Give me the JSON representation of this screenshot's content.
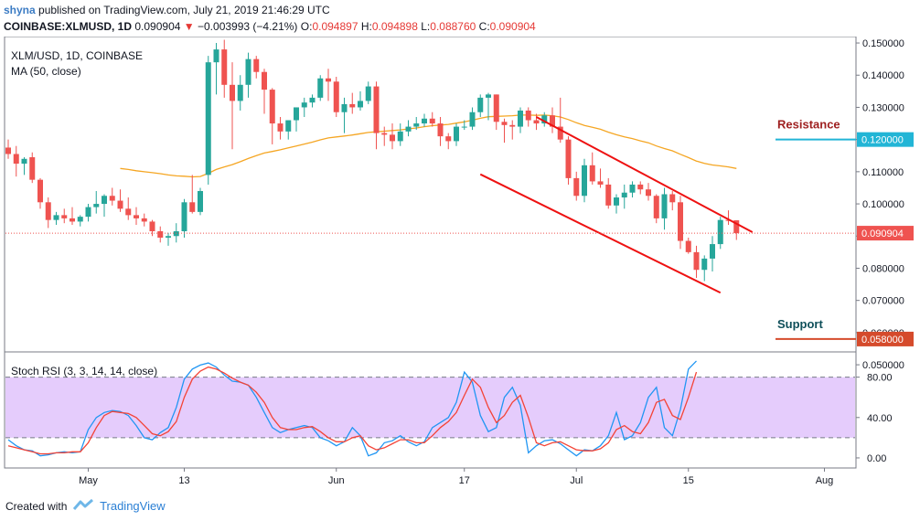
{
  "header": {
    "author": "shyna",
    "published_text": "published on TradingView.com, July 21, 2019 21:46:29 UTC",
    "symbol": "COINBASE:XLMUSD, 1D",
    "last": "0.090904",
    "change": "−0.003993 (−4.21%)",
    "o_label": "O:",
    "o_value": "0.094897",
    "h_label": "H:",
    "h_value": "0.094898",
    "l_label": "L:",
    "l_value": "0.088760",
    "c_label": "C:",
    "c_value": "0.090904"
  },
  "legend": {
    "symbol_line": "XLM/USD, 1D, COINBASE",
    "ma_line": "MA (50, close)",
    "stoch_line": "Stoch RSI (3, 3, 14, 14, close)"
  },
  "footer": {
    "created_with": "Created with",
    "brand": "TradingView"
  },
  "colors": {
    "up": "#26a69a",
    "down": "#ef5350",
    "ma": "#f5a623",
    "k": "#2196f3",
    "d": "#f44336",
    "band": "#e1c3fb",
    "resistance": "#22b5d6",
    "support": "#d54b2c",
    "channel": "#ee1111",
    "resistance_text": "#9e1f1f",
    "support_text": "#0f4f5a"
  },
  "chart_data": [
    {
      "type": "candlestick",
      "title": "XLM/USD, 1D, COINBASE",
      "dates": [
        "Apr 21",
        "Apr 22",
        "Apr 23",
        "Apr 24",
        "Apr 25",
        "Apr 26",
        "Apr 27",
        "Apr 28",
        "Apr 29",
        "Apr 30",
        "May 1",
        "May 2",
        "May 3",
        "May 4",
        "May 5",
        "May 6",
        "May 7",
        "May 8",
        "May 9",
        "May 10",
        "May 11",
        "May 12",
        "May 13",
        "May 14",
        "May 15",
        "May 16",
        "May 17",
        "May 18",
        "May 19",
        "May 20",
        "May 21",
        "May 22",
        "May 23",
        "May 24",
        "May 25",
        "May 26",
        "May 27",
        "May 28",
        "May 29",
        "May 30",
        "May 31",
        "Jun 1",
        "Jun 2",
        "Jun 3",
        "Jun 4",
        "Jun 5",
        "Jun 6",
        "Jun 7",
        "Jun 8",
        "Jun 9",
        "Jun 10",
        "Jun 11",
        "Jun 12",
        "Jun 13",
        "Jun 14",
        "Jun 15",
        "Jun 16",
        "Jun 17",
        "Jun 18",
        "Jun 19",
        "Jun 20",
        "Jun 21",
        "Jun 22",
        "Jun 23",
        "Jun 24",
        "Jun 25",
        "Jun 26",
        "Jun 27",
        "Jun 28",
        "Jun 29",
        "Jun 30",
        "Jul 1",
        "Jul 2",
        "Jul 3",
        "Jul 4",
        "Jul 5",
        "Jul 6",
        "Jul 7",
        "Jul 8",
        "Jul 9",
        "Jul 10",
        "Jul 11",
        "Jul 12",
        "Jul 13",
        "Jul 14",
        "Jul 15",
        "Jul 16",
        "Jul 17",
        "Jul 18",
        "Jul 19",
        "Jul 20",
        "Jul 21"
      ],
      "open": [
        0.1175,
        0.1155,
        0.1125,
        0.1145,
        0.1075,
        0.1005,
        0.095,
        0.0965,
        0.0955,
        0.0945,
        0.096,
        0.099,
        0.1,
        0.1025,
        0.101,
        0.0985,
        0.0965,
        0.0955,
        0.0945,
        0.0915,
        0.0895,
        0.09,
        0.0915,
        0.1005,
        0.0975,
        0.109,
        0.144,
        0.148,
        0.137,
        0.132,
        0.137,
        0.145,
        0.141,
        0.1355,
        0.125,
        0.1225,
        0.126,
        0.13,
        0.1315,
        0.133,
        0.139,
        0.138,
        0.1285,
        0.131,
        0.13,
        0.132,
        0.1365,
        0.122,
        0.1215,
        0.1195,
        0.1225,
        0.124,
        0.125,
        0.1265,
        0.125,
        0.121,
        0.1195,
        0.124,
        0.124,
        0.1285,
        0.133,
        0.134,
        0.1255,
        0.1245,
        0.124,
        0.129,
        0.126,
        0.125,
        0.1275,
        0.124,
        0.12,
        0.108,
        0.1025,
        0.112,
        0.107,
        0.106,
        0.0995,
        0.102,
        0.1035,
        0.106,
        0.1045,
        0.1025,
        0.0955,
        0.103,
        0.1005,
        0.0885,
        0.085,
        0.0795,
        0.083,
        0.0875,
        0.095,
        0.0949
      ],
      "high": [
        0.12,
        0.118,
        0.1145,
        0.116,
        0.108,
        0.102,
        0.0975,
        0.0985,
        0.099,
        0.0965,
        0.1,
        0.104,
        0.103,
        0.105,
        0.1045,
        0.102,
        0.099,
        0.097,
        0.095,
        0.093,
        0.091,
        0.094,
        0.1015,
        0.109,
        0.105,
        0.146,
        0.15,
        0.151,
        0.144,
        0.14,
        0.147,
        0.146,
        0.142,
        0.136,
        0.127,
        0.126,
        0.13,
        0.133,
        0.134,
        0.14,
        0.142,
        0.1395,
        0.133,
        0.1345,
        0.135,
        0.138,
        0.138,
        0.124,
        0.125,
        0.125,
        0.126,
        0.127,
        0.128,
        0.1285,
        0.127,
        0.122,
        0.125,
        0.126,
        0.13,
        0.134,
        0.1345,
        0.134,
        0.1265,
        0.126,
        0.13,
        0.13,
        0.128,
        0.1285,
        0.13,
        0.133,
        0.121,
        0.11,
        0.114,
        0.116,
        0.111,
        0.108,
        0.103,
        0.106,
        0.107,
        0.107,
        0.1065,
        0.103,
        0.105,
        0.104,
        0.1025,
        0.0895,
        0.087,
        0.084,
        0.09,
        0.096,
        0.098,
        0.0949
      ],
      "low": [
        0.114,
        0.1085,
        0.109,
        0.1065,
        0.0985,
        0.0925,
        0.0935,
        0.094,
        0.0935,
        0.093,
        0.0945,
        0.097,
        0.096,
        0.0995,
        0.0975,
        0.095,
        0.0935,
        0.093,
        0.09,
        0.088,
        0.087,
        0.088,
        0.0895,
        0.097,
        0.0965,
        0.106,
        0.134,
        0.133,
        0.117,
        0.129,
        0.133,
        0.139,
        0.128,
        0.1185,
        0.12,
        0.12,
        0.1225,
        0.127,
        0.13,
        0.132,
        0.132,
        0.127,
        0.122,
        0.128,
        0.129,
        0.131,
        0.117,
        0.118,
        0.117,
        0.118,
        0.121,
        0.123,
        0.124,
        0.124,
        0.118,
        0.117,
        0.118,
        0.123,
        0.123,
        0.127,
        0.126,
        0.123,
        0.119,
        0.12,
        0.122,
        0.124,
        0.123,
        0.124,
        0.122,
        0.119,
        0.106,
        0.101,
        0.1005,
        0.106,
        0.105,
        0.0985,
        0.097,
        0.0985,
        0.102,
        0.103,
        0.101,
        0.094,
        0.092,
        0.098,
        0.086,
        0.0845,
        0.077,
        0.076,
        0.079,
        0.086,
        0.0935,
        0.0888
      ],
      "close": [
        0.1155,
        0.1125,
        0.114,
        0.1075,
        0.1005,
        0.095,
        0.0965,
        0.0955,
        0.0945,
        0.096,
        0.099,
        0.1,
        0.1025,
        0.101,
        0.0985,
        0.0965,
        0.0955,
        0.0945,
        0.0915,
        0.0895,
        0.09,
        0.0915,
        0.1005,
        0.0975,
        0.104,
        0.144,
        0.148,
        0.137,
        0.132,
        0.137,
        0.145,
        0.141,
        0.1355,
        0.125,
        0.1225,
        0.126,
        0.13,
        0.1315,
        0.133,
        0.139,
        0.138,
        0.1285,
        0.131,
        0.13,
        0.132,
        0.1365,
        0.122,
        0.1215,
        0.1195,
        0.1225,
        0.124,
        0.125,
        0.1265,
        0.125,
        0.121,
        0.1195,
        0.124,
        0.124,
        0.1285,
        0.133,
        0.134,
        0.1255,
        0.1245,
        0.124,
        0.129,
        0.126,
        0.125,
        0.1275,
        0.124,
        0.12,
        0.108,
        0.1025,
        0.112,
        0.107,
        0.106,
        0.0995,
        0.102,
        0.1035,
        0.106,
        0.1045,
        0.1025,
        0.0955,
        0.103,
        0.1005,
        0.0885,
        0.085,
        0.0795,
        0.083,
        0.0875,
        0.095,
        0.0949,
        0.0909
      ],
      "ma50": [
        null,
        null,
        null,
        null,
        null,
        null,
        null,
        null,
        null,
        null,
        null,
        null,
        null,
        null,
        0.111,
        0.1107,
        0.1103,
        0.11,
        0.1097,
        0.1094,
        0.109,
        0.1087,
        0.1086,
        0.1084,
        0.1085,
        0.1095,
        0.1107,
        0.1115,
        0.1122,
        0.1131,
        0.1141,
        0.115,
        0.1158,
        0.1163,
        0.1168,
        0.1174,
        0.118,
        0.1186,
        0.1192,
        0.1199,
        0.1205,
        0.1208,
        0.1211,
        0.1214,
        0.1218,
        0.1222,
        0.1224,
        0.1226,
        0.1228,
        0.123,
        0.1233,
        0.1236,
        0.124,
        0.1243,
        0.1245,
        0.1247,
        0.1251,
        0.1255,
        0.126,
        0.1266,
        0.1271,
        0.1272,
        0.1273,
        0.1274,
        0.1276,
        0.1276,
        0.1275,
        0.1276,
        0.1274,
        0.127,
        0.1262,
        0.1252,
        0.1244,
        0.1238,
        0.1232,
        0.1223,
        0.1215,
        0.1208,
        0.1203,
        0.1196,
        0.119,
        0.118,
        0.1172,
        0.1165,
        0.1154,
        0.1144,
        0.1133,
        0.1126,
        0.1121,
        0.1118,
        0.1115,
        0.111
      ],
      "last_price": 0.090904,
      "resistance": 0.12,
      "support": 0.058,
      "ylim": [
        0.054,
        0.152
      ],
      "yticks": [
        0.15,
        0.14,
        0.13,
        0.12,
        0.11,
        0.1,
        0.09,
        0.08,
        0.07,
        0.06,
        0.05
      ],
      "ytick_labels": [
        "0.150000",
        "0.140000",
        "0.130000",
        "0.120000",
        "0.110000",
        "0.100000",
        "0.090000",
        "0.080000",
        "0.070000",
        "0.060000",
        "0.050000"
      ],
      "x_labels": [
        {
          "label": "May",
          "day": 10
        },
        {
          "label": "13",
          "day": 22
        },
        {
          "label": "Jun",
          "day": 41
        },
        {
          "label": "17",
          "day": 57
        },
        {
          "label": "Jul",
          "day": 71
        },
        {
          "label": "15",
          "day": 85
        },
        {
          "label": "Aug",
          "day": 102
        }
      ],
      "channel_upper": [
        [
          0.127,
          66
        ],
        [
          0.0912,
          93
        ]
      ],
      "channel_lower": [
        [
          0.1092,
          59
        ],
        [
          0.0724,
          89
        ]
      ],
      "annotations": [
        "Resistance",
        "Support",
        "0.120000",
        "0.058000",
        "0.090904"
      ]
    },
    {
      "type": "line",
      "title": "Stoch RSI (3, 3, 14, 14, close)",
      "ylim": [
        -10,
        105
      ],
      "yticks": [
        80,
        40,
        0
      ],
      "ytick_labels": [
        "80.00",
        "40.00",
        "0.00"
      ],
      "band": [
        20,
        80
      ],
      "series": [
        {
          "name": "K",
          "values": [
            18,
            12,
            8,
            7,
            2,
            3,
            5,
            6,
            5,
            6,
            28,
            40,
            45,
            47,
            46,
            42,
            32,
            20,
            18,
            25,
            30,
            50,
            78,
            88,
            92,
            94,
            90,
            82,
            76,
            75,
            72,
            60,
            45,
            30,
            25,
            28,
            30,
            32,
            30,
            20,
            17,
            12,
            16,
            30,
            22,
            2,
            5,
            15,
            17,
            22,
            16,
            12,
            16,
            30,
            35,
            40,
            55,
            85,
            75,
            42,
            26,
            30,
            60,
            70,
            52,
            5,
            12,
            17,
            18,
            14,
            8,
            2,
            8,
            7,
            12,
            22,
            45,
            18,
            22,
            35,
            60,
            70,
            30,
            22,
            48,
            88,
            96
          ]
        },
        {
          "name": "D",
          "values": [
            12,
            10,
            8,
            6,
            4,
            4,
            5,
            5,
            6,
            6,
            15,
            30,
            42,
            46,
            45,
            44,
            40,
            32,
            24,
            22,
            26,
            36,
            60,
            78,
            86,
            90,
            88,
            84,
            79,
            75,
            72,
            65,
            55,
            40,
            30,
            28,
            28,
            30,
            31,
            26,
            20,
            16,
            16,
            20,
            22,
            12,
            8,
            10,
            14,
            18,
            18,
            15,
            15,
            22,
            30,
            36,
            45,
            62,
            78,
            70,
            50,
            35,
            42,
            55,
            62,
            40,
            15,
            12,
            15,
            16,
            12,
            8,
            7,
            7,
            9,
            15,
            28,
            32,
            26,
            24,
            35,
            55,
            58,
            42,
            38,
            60,
            85
          ]
        }
      ]
    }
  ]
}
